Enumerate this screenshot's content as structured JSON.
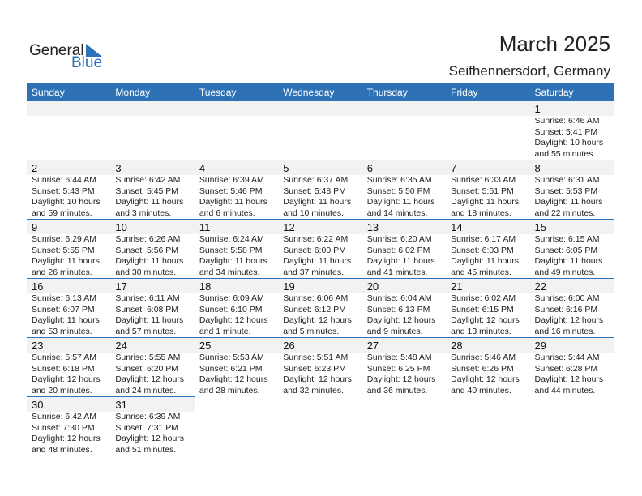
{
  "logo": {
    "text_general": "General",
    "text_blue": "Blue"
  },
  "title": "March 2025",
  "location": "Seifhennersdorf, Germany",
  "colors": {
    "header": "#2e72b5",
    "day_strip": "#f2f2f2"
  },
  "weekdays": [
    "Sunday",
    "Monday",
    "Tuesday",
    "Wednesday",
    "Thursday",
    "Friday",
    "Saturday"
  ],
  "weeks": [
    [
      null,
      null,
      null,
      null,
      null,
      null,
      {
        "day": "1",
        "sunrise": "Sunrise: 6:46 AM",
        "sunset": "Sunset: 5:41 PM",
        "daylight1": "Daylight: 10 hours",
        "daylight2": "and 55 minutes."
      }
    ],
    [
      {
        "day": "2",
        "sunrise": "Sunrise: 6:44 AM",
        "sunset": "Sunset: 5:43 PM",
        "daylight1": "Daylight: 10 hours",
        "daylight2": "and 59 minutes."
      },
      {
        "day": "3",
        "sunrise": "Sunrise: 6:42 AM",
        "sunset": "Sunset: 5:45 PM",
        "daylight1": "Daylight: 11 hours",
        "daylight2": "and 3 minutes."
      },
      {
        "day": "4",
        "sunrise": "Sunrise: 6:39 AM",
        "sunset": "Sunset: 5:46 PM",
        "daylight1": "Daylight: 11 hours",
        "daylight2": "and 6 minutes."
      },
      {
        "day": "5",
        "sunrise": "Sunrise: 6:37 AM",
        "sunset": "Sunset: 5:48 PM",
        "daylight1": "Daylight: 11 hours",
        "daylight2": "and 10 minutes."
      },
      {
        "day": "6",
        "sunrise": "Sunrise: 6:35 AM",
        "sunset": "Sunset: 5:50 PM",
        "daylight1": "Daylight: 11 hours",
        "daylight2": "and 14 minutes."
      },
      {
        "day": "7",
        "sunrise": "Sunrise: 6:33 AM",
        "sunset": "Sunset: 5:51 PM",
        "daylight1": "Daylight: 11 hours",
        "daylight2": "and 18 minutes."
      },
      {
        "day": "8",
        "sunrise": "Sunrise: 6:31 AM",
        "sunset": "Sunset: 5:53 PM",
        "daylight1": "Daylight: 11 hours",
        "daylight2": "and 22 minutes."
      }
    ],
    [
      {
        "day": "9",
        "sunrise": "Sunrise: 6:29 AM",
        "sunset": "Sunset: 5:55 PM",
        "daylight1": "Daylight: 11 hours",
        "daylight2": "and 26 minutes."
      },
      {
        "day": "10",
        "sunrise": "Sunrise: 6:26 AM",
        "sunset": "Sunset: 5:56 PM",
        "daylight1": "Daylight: 11 hours",
        "daylight2": "and 30 minutes."
      },
      {
        "day": "11",
        "sunrise": "Sunrise: 6:24 AM",
        "sunset": "Sunset: 5:58 PM",
        "daylight1": "Daylight: 11 hours",
        "daylight2": "and 34 minutes."
      },
      {
        "day": "12",
        "sunrise": "Sunrise: 6:22 AM",
        "sunset": "Sunset: 6:00 PM",
        "daylight1": "Daylight: 11 hours",
        "daylight2": "and 37 minutes."
      },
      {
        "day": "13",
        "sunrise": "Sunrise: 6:20 AM",
        "sunset": "Sunset: 6:02 PM",
        "daylight1": "Daylight: 11 hours",
        "daylight2": "and 41 minutes."
      },
      {
        "day": "14",
        "sunrise": "Sunrise: 6:17 AM",
        "sunset": "Sunset: 6:03 PM",
        "daylight1": "Daylight: 11 hours",
        "daylight2": "and 45 minutes."
      },
      {
        "day": "15",
        "sunrise": "Sunrise: 6:15 AM",
        "sunset": "Sunset: 6:05 PM",
        "daylight1": "Daylight: 11 hours",
        "daylight2": "and 49 minutes."
      }
    ],
    [
      {
        "day": "16",
        "sunrise": "Sunrise: 6:13 AM",
        "sunset": "Sunset: 6:07 PM",
        "daylight1": "Daylight: 11 hours",
        "daylight2": "and 53 minutes."
      },
      {
        "day": "17",
        "sunrise": "Sunrise: 6:11 AM",
        "sunset": "Sunset: 6:08 PM",
        "daylight1": "Daylight: 11 hours",
        "daylight2": "and 57 minutes."
      },
      {
        "day": "18",
        "sunrise": "Sunrise: 6:09 AM",
        "sunset": "Sunset: 6:10 PM",
        "daylight1": "Daylight: 12 hours",
        "daylight2": "and 1 minute."
      },
      {
        "day": "19",
        "sunrise": "Sunrise: 6:06 AM",
        "sunset": "Sunset: 6:12 PM",
        "daylight1": "Daylight: 12 hours",
        "daylight2": "and 5 minutes."
      },
      {
        "day": "20",
        "sunrise": "Sunrise: 6:04 AM",
        "sunset": "Sunset: 6:13 PM",
        "daylight1": "Daylight: 12 hours",
        "daylight2": "and 9 minutes."
      },
      {
        "day": "21",
        "sunrise": "Sunrise: 6:02 AM",
        "sunset": "Sunset: 6:15 PM",
        "daylight1": "Daylight: 12 hours",
        "daylight2": "and 13 minutes."
      },
      {
        "day": "22",
        "sunrise": "Sunrise: 6:00 AM",
        "sunset": "Sunset: 6:16 PM",
        "daylight1": "Daylight: 12 hours",
        "daylight2": "and 16 minutes."
      }
    ],
    [
      {
        "day": "23",
        "sunrise": "Sunrise: 5:57 AM",
        "sunset": "Sunset: 6:18 PM",
        "daylight1": "Daylight: 12 hours",
        "daylight2": "and 20 minutes."
      },
      {
        "day": "24",
        "sunrise": "Sunrise: 5:55 AM",
        "sunset": "Sunset: 6:20 PM",
        "daylight1": "Daylight: 12 hours",
        "daylight2": "and 24 minutes."
      },
      {
        "day": "25",
        "sunrise": "Sunrise: 5:53 AM",
        "sunset": "Sunset: 6:21 PM",
        "daylight1": "Daylight: 12 hours",
        "daylight2": "and 28 minutes."
      },
      {
        "day": "26",
        "sunrise": "Sunrise: 5:51 AM",
        "sunset": "Sunset: 6:23 PM",
        "daylight1": "Daylight: 12 hours",
        "daylight2": "and 32 minutes."
      },
      {
        "day": "27",
        "sunrise": "Sunrise: 5:48 AM",
        "sunset": "Sunset: 6:25 PM",
        "daylight1": "Daylight: 12 hours",
        "daylight2": "and 36 minutes."
      },
      {
        "day": "28",
        "sunrise": "Sunrise: 5:46 AM",
        "sunset": "Sunset: 6:26 PM",
        "daylight1": "Daylight: 12 hours",
        "daylight2": "and 40 minutes."
      },
      {
        "day": "29",
        "sunrise": "Sunrise: 5:44 AM",
        "sunset": "Sunset: 6:28 PM",
        "daylight1": "Daylight: 12 hours",
        "daylight2": "and 44 minutes."
      }
    ],
    [
      {
        "day": "30",
        "sunrise": "Sunrise: 6:42 AM",
        "sunset": "Sunset: 7:30 PM",
        "daylight1": "Daylight: 12 hours",
        "daylight2": "and 48 minutes."
      },
      {
        "day": "31",
        "sunrise": "Sunrise: 6:39 AM",
        "sunset": "Sunset: 7:31 PM",
        "daylight1": "Daylight: 12 hours",
        "daylight2": "and 51 minutes."
      },
      null,
      null,
      null,
      null,
      null
    ]
  ]
}
